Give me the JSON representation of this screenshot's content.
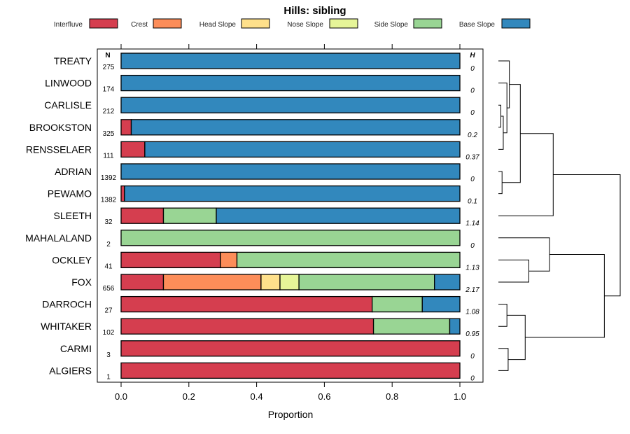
{
  "chart_data": {
    "type": "bar",
    "stacked": true,
    "orientation": "horizontal",
    "title": "Hills: sibling",
    "xlabel": "Proportion",
    "ylabel": "",
    "xlim": [
      0,
      1
    ],
    "xticks": [
      0,
      0.2,
      0.4,
      0.6,
      0.8,
      1
    ],
    "xtick_labels": [
      "0.0",
      "0.2",
      "0.4",
      "0.6",
      "0.8",
      "1.0"
    ],
    "n_header": "N",
    "h_header": "H",
    "legend_position": "top",
    "series": [
      {
        "name": "Interfluve",
        "color": "#d53e4f"
      },
      {
        "name": "Crest",
        "color": "#fc8d59"
      },
      {
        "name": "Head Slope",
        "color": "#fee08b"
      },
      {
        "name": "Nose Slope",
        "color": "#e6f598"
      },
      {
        "name": "Side Slope",
        "color": "#99d594"
      },
      {
        "name": "Base Slope",
        "color": "#3288bd"
      }
    ],
    "rows": [
      {
        "name": "TREATY",
        "n": "275",
        "h": "0",
        "values": [
          0,
          0,
          0,
          0,
          0,
          1
        ]
      },
      {
        "name": "LINWOOD",
        "n": "174",
        "h": "0",
        "values": [
          0,
          0,
          0,
          0,
          0,
          1
        ]
      },
      {
        "name": "CARLISLE",
        "n": "212",
        "h": "0",
        "values": [
          0,
          0,
          0,
          0,
          0,
          1
        ]
      },
      {
        "name": "BROOKSTON",
        "n": "325",
        "h": "0.2",
        "values": [
          0.03,
          0,
          0,
          0,
          0,
          0.97
        ]
      },
      {
        "name": "RENSSELAER",
        "n": "111",
        "h": "0.37",
        "values": [
          0.07,
          0,
          0,
          0,
          0,
          0.93
        ]
      },
      {
        "name": "ADRIAN",
        "n": "1392",
        "h": "0",
        "values": [
          0,
          0,
          0,
          0,
          0,
          1
        ]
      },
      {
        "name": "PEWAMO",
        "n": "1382",
        "h": "0.1",
        "values": [
          0.01,
          0,
          0,
          0,
          0,
          0.99
        ]
      },
      {
        "name": "SLEETH",
        "n": "32",
        "h": "1.14",
        "values": [
          0.125,
          0,
          0,
          0,
          0.156,
          0.719
        ]
      },
      {
        "name": "MAHALALAND",
        "n": "2",
        "h": "0",
        "values": [
          0,
          0,
          0,
          0,
          1,
          0
        ]
      },
      {
        "name": "OCKLEY",
        "n": "41",
        "h": "1.13",
        "values": [
          0.293,
          0.049,
          0,
          0,
          0.658,
          0
        ]
      },
      {
        "name": "FOX",
        "n": "656",
        "h": "2.17",
        "values": [
          0.125,
          0.288,
          0.056,
          0.056,
          0.4,
          0.075
        ]
      },
      {
        "name": "DARROCH",
        "n": "27",
        "h": "1.08",
        "values": [
          0.741,
          0,
          0,
          0,
          0.148,
          0.111
        ]
      },
      {
        "name": "WHITAKER",
        "n": "102",
        "h": "0.95",
        "values": [
          0.745,
          0,
          0,
          0,
          0.225,
          0.03
        ]
      },
      {
        "name": "CARMI",
        "n": "3",
        "h": "0",
        "values": [
          1,
          0,
          0,
          0,
          0,
          0
        ]
      },
      {
        "name": "ALGIERS",
        "n": "1",
        "h": "0",
        "values": [
          1,
          0,
          0,
          0,
          0,
          0
        ]
      }
    ],
    "dendrogram": {
      "leaves": [
        "TREATY",
        "LINWOOD",
        "CARLISLE",
        "BROOKSTON",
        "RENSSELAER",
        "ADRIAN",
        "PEWAMO",
        "SLEETH",
        "MAHALALAND",
        "OCKLEY",
        "FOX",
        "DARROCH",
        "WHITAKER",
        "CARMI",
        "ALGIERS"
      ],
      "merges": [
        {
          "a": "CARLISLE",
          "b": "BROOKSTON",
          "height": 0.02,
          "id": "m1"
        },
        {
          "a": "m1",
          "b": "RENSSELAER",
          "height": 0.04,
          "id": "m2"
        },
        {
          "a": "LINWOOD",
          "b": "m2",
          "height": 0.07,
          "id": "m3"
        },
        {
          "a": "TREATY",
          "b": "m3",
          "height": 0.09,
          "id": "m4"
        },
        {
          "a": "ADRIAN",
          "b": "PEWAMO",
          "height": 0.03,
          "id": "m5"
        },
        {
          "a": "m4",
          "b": "m5",
          "height": 0.18,
          "id": "m6"
        },
        {
          "a": "m6",
          "b": "SLEETH",
          "height": 0.45,
          "id": "m7"
        },
        {
          "a": "OCKLEY",
          "b": "FOX",
          "height": 0.25,
          "id": "m8"
        },
        {
          "a": "MAHALALAND",
          "b": "m8",
          "height": 0.42,
          "id": "m9"
        },
        {
          "a": "CARMI",
          "b": "ALGIERS",
          "height": 0.08,
          "id": "m10"
        },
        {
          "a": "DARROCH",
          "b": "WHITAKER",
          "height": 0.07,
          "id": "m11"
        },
        {
          "a": "m11",
          "b": "m10",
          "height": 0.22,
          "id": "m12"
        },
        {
          "a": "m9",
          "b": "m12",
          "height": 0.87,
          "id": "m13"
        },
        {
          "a": "m7",
          "b": "m13",
          "height": 1.0,
          "id": "m14"
        }
      ]
    }
  }
}
